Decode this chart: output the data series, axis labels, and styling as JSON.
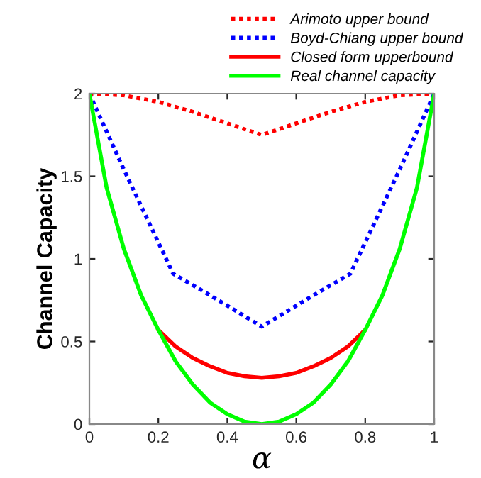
{
  "chart_data": {
    "type": "line",
    "xlabel": "α",
    "ylabel": "Channel Capacity",
    "xlim": [
      0,
      1
    ],
    "ylim": [
      0,
      2
    ],
    "xticks": [
      0,
      0.2,
      0.4,
      0.6,
      0.8,
      1
    ],
    "yticks": [
      0,
      0.5,
      1,
      1.5,
      2
    ],
    "grid": false,
    "legend": "top right",
    "marker": "none",
    "series": [
      {
        "name": "Arimoto upper bound",
        "color": "#ff0000",
        "line_style": "dotted",
        "x": [
          0,
          0.1,
          0.2,
          0.3,
          0.4,
          0.5,
          0.6,
          0.7,
          0.8,
          0.9,
          1
        ],
        "values": [
          2,
          1.99,
          1.95,
          1.89,
          1.82,
          1.75,
          1.82,
          1.89,
          1.95,
          1.99,
          2
        ]
      },
      {
        "name": "Boyd-Chiang upper bound",
        "color": "#0000ff",
        "line_style": "dotted",
        "x": [
          0,
          0.1,
          0.243,
          0.35,
          0.5,
          0.65,
          0.757,
          0.9,
          1
        ],
        "values": [
          2,
          1.54,
          0.91,
          0.78,
          0.59,
          0.78,
          0.91,
          1.54,
          2
        ]
      },
      {
        "name": "Closed form upperbound",
        "color": "#ff0000",
        "line_style": "solid",
        "x": [
          0.2,
          0.25,
          0.3,
          0.35,
          0.4,
          0.45,
          0.5,
          0.55,
          0.6,
          0.65,
          0.7,
          0.75,
          0.8
        ],
        "values": [
          0.57,
          0.47,
          0.4,
          0.35,
          0.31,
          0.29,
          0.28,
          0.29,
          0.31,
          0.35,
          0.4,
          0.47,
          0.57
        ]
      },
      {
        "name": "Real channel capacity",
        "color": "#00ff00",
        "line_style": "solid",
        "x": [
          0,
          0.05,
          0.1,
          0.15,
          0.2,
          0.25,
          0.3,
          0.35,
          0.4,
          0.45,
          0.5,
          0.55,
          0.6,
          0.65,
          0.7,
          0.75,
          0.8,
          0.85,
          0.9,
          0.95,
          1
        ],
        "values": [
          2,
          1.43,
          1.06,
          0.78,
          0.57,
          0.38,
          0.24,
          0.13,
          0.06,
          0.015,
          0,
          0.015,
          0.06,
          0.13,
          0.24,
          0.38,
          0.57,
          0.78,
          1.06,
          1.43,
          2
        ]
      }
    ]
  }
}
